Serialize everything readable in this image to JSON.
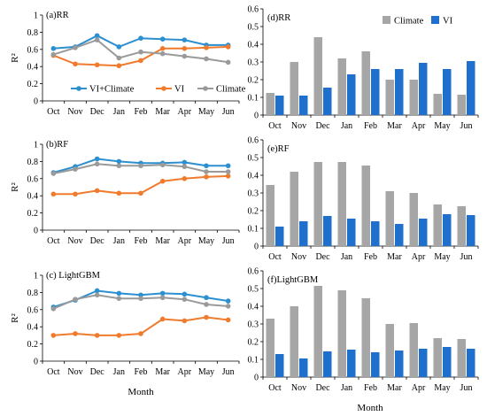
{
  "months": [
    "Oct",
    "Nov",
    "Dec",
    "Jan",
    "Feb",
    "Mar",
    "Apr",
    "May",
    "Jun"
  ],
  "xlabel": "Month",
  "colors": {
    "vi_climate": "#2b8fd0",
    "vi": "#f07b2d",
    "climate": "#9a9a9a",
    "bar_climate": "#a6a6a6",
    "bar_vi": "#1f6fcc"
  },
  "chart_data": [
    {
      "type": "line",
      "title": "(a)RR",
      "ylabel": "R²",
      "ylim": [
        0,
        1
      ],
      "yticks": [
        "0",
        "0.2",
        "0.4",
        "0.6",
        "0.8",
        "1"
      ],
      "categories": [
        "Oct",
        "Nov",
        "Dec",
        "Jan",
        "Feb",
        "Mar",
        "Apr",
        "May",
        "Jun"
      ],
      "legend": "inside-bottom",
      "series": [
        {
          "name": "VI+Climate",
          "values": [
            0.61,
            0.63,
            0.76,
            0.63,
            0.73,
            0.72,
            0.71,
            0.65,
            0.65
          ]
        },
        {
          "name": "VI",
          "values": [
            0.53,
            0.43,
            0.42,
            0.41,
            0.47,
            0.61,
            0.61,
            0.62,
            0.63
          ]
        },
        {
          "name": "Climate",
          "values": [
            0.54,
            0.62,
            0.71,
            0.5,
            0.57,
            0.55,
            0.52,
            0.49,
            0.45
          ]
        }
      ]
    },
    {
      "type": "line",
      "title": "(b)RF",
      "ylabel": "R²",
      "ylim": [
        0,
        1
      ],
      "yticks": [
        "0",
        "0.2",
        "0.4",
        "0.6",
        "0.8",
        "1"
      ],
      "categories": [
        "Oct",
        "Nov",
        "Dec",
        "Jan",
        "Feb",
        "Mar",
        "Apr",
        "May",
        "Jun"
      ],
      "series": [
        {
          "name": "VI+Climate",
          "values": [
            0.67,
            0.74,
            0.83,
            0.8,
            0.78,
            0.78,
            0.79,
            0.75,
            0.75
          ]
        },
        {
          "name": "VI",
          "values": [
            0.42,
            0.42,
            0.46,
            0.43,
            0.43,
            0.57,
            0.6,
            0.62,
            0.63
          ]
        },
        {
          "name": "Climate",
          "values": [
            0.66,
            0.71,
            0.77,
            0.75,
            0.75,
            0.76,
            0.74,
            0.68,
            0.68
          ]
        }
      ]
    },
    {
      "type": "line",
      "title": "(c) LightGBM",
      "ylabel": "R²",
      "ylim": [
        0,
        1
      ],
      "yticks": [
        "0",
        "0.2",
        "0.4",
        "0.6",
        "0.8",
        "1"
      ],
      "categories": [
        "Oct",
        "Nov",
        "Dec",
        "Jan",
        "Feb",
        "Mar",
        "Apr",
        "May",
        "Jun"
      ],
      "series": [
        {
          "name": "VI+Climate",
          "values": [
            0.63,
            0.71,
            0.82,
            0.79,
            0.77,
            0.79,
            0.78,
            0.74,
            0.7
          ]
        },
        {
          "name": "VI",
          "values": [
            0.3,
            0.32,
            0.3,
            0.3,
            0.32,
            0.49,
            0.47,
            0.51,
            0.48
          ]
        },
        {
          "name": "Climate",
          "values": [
            0.61,
            0.72,
            0.77,
            0.73,
            0.73,
            0.74,
            0.72,
            0.66,
            0.64
          ]
        }
      ]
    },
    {
      "type": "bar",
      "title": "(d)RR",
      "ylim": [
        0,
        0.6
      ],
      "yticks": [
        "0",
        "0.1",
        "0.2",
        "0.3",
        "0.4",
        "0.5",
        "0.6"
      ],
      "categories": [
        "Oct",
        "Nov",
        "Dec",
        "Jan",
        "Feb",
        "Mar",
        "Apr",
        "May",
        "Jun"
      ],
      "legend": "top-right",
      "series": [
        {
          "name": "Climate",
          "values": [
            0.125,
            0.3,
            0.44,
            0.32,
            0.36,
            0.2,
            0.2,
            0.12,
            0.115
          ]
        },
        {
          "name": "VI",
          "values": [
            0.11,
            0.11,
            0.155,
            0.23,
            0.26,
            0.26,
            0.295,
            0.26,
            0.305
          ]
        }
      ]
    },
    {
      "type": "bar",
      "title": "(e)RF",
      "ylim": [
        0,
        0.6
      ],
      "yticks": [
        "0",
        "0.1",
        "0.2",
        "0.3",
        "0.4",
        "0.5",
        "0.6"
      ],
      "categories": [
        "Oct",
        "Nov",
        "Dec",
        "Jan",
        "Feb",
        "Mar",
        "Apr",
        "May",
        "Jun"
      ],
      "series": [
        {
          "name": "Climate",
          "values": [
            0.345,
            0.42,
            0.475,
            0.475,
            0.455,
            0.31,
            0.3,
            0.235,
            0.225
          ]
        },
        {
          "name": "VI",
          "values": [
            0.11,
            0.14,
            0.17,
            0.155,
            0.14,
            0.125,
            0.155,
            0.18,
            0.175
          ]
        }
      ]
    },
    {
      "type": "bar",
      "title": "(f)LightGBM",
      "ylim": [
        0,
        0.6
      ],
      "yticks": [
        "0",
        "0.1",
        "0.2",
        "0.3",
        "0.4",
        "0.5",
        "0.6"
      ],
      "categories": [
        "Oct",
        "Nov",
        "Dec",
        "Jan",
        "Feb",
        "Mar",
        "Apr",
        "May",
        "Jun"
      ],
      "series": [
        {
          "name": "Climate",
          "values": [
            0.33,
            0.4,
            0.515,
            0.49,
            0.445,
            0.3,
            0.305,
            0.22,
            0.215
          ]
        },
        {
          "name": "VI",
          "values": [
            0.13,
            0.105,
            0.145,
            0.155,
            0.14,
            0.15,
            0.16,
            0.17,
            0.16
          ]
        }
      ]
    }
  ]
}
